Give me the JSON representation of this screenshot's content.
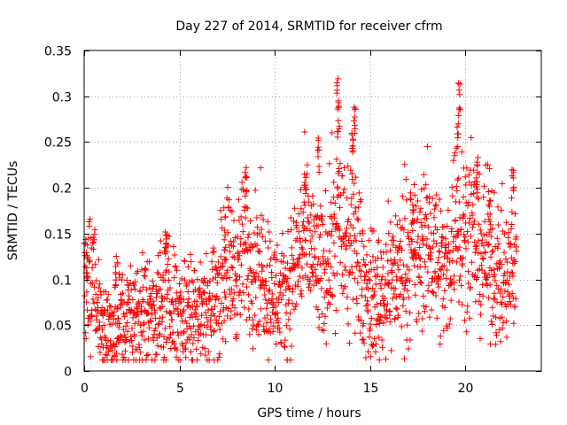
{
  "chart_data": {
    "type": "scatter",
    "title": "Day 227 of 2014, SRMTID for receiver cfrm",
    "xlabel": "GPS time / hours",
    "ylabel": "SRMTID / TECUs",
    "xlim": [
      0,
      24
    ],
    "ylim": [
      0,
      0.35
    ],
    "xticks": [
      0,
      5,
      10,
      15,
      20
    ],
    "xtick_labels": [
      "0",
      "5",
      "10",
      "15",
      "20"
    ],
    "yticks": [
      0,
      0.05,
      0.1,
      0.15,
      0.2,
      0.25,
      0.3,
      0.35
    ],
    "ytick_labels": [
      "0",
      "0.05",
      "0.1",
      "0.15",
      "0.2",
      "0.25",
      "0.3",
      "0.35"
    ],
    "grid": true,
    "marker": "+",
    "color": "#ff0000",
    "series": [
      {
        "name": "SRMTID",
        "trend": [
          [
            0.0,
            0.1
          ],
          [
            0.3,
            0.11
          ],
          [
            0.6,
            0.08
          ],
          [
            1.0,
            0.05
          ],
          [
            1.5,
            0.045
          ],
          [
            2.0,
            0.055
          ],
          [
            2.5,
            0.055
          ],
          [
            3.0,
            0.065
          ],
          [
            3.5,
            0.07
          ],
          [
            4.0,
            0.07
          ],
          [
            4.5,
            0.075
          ],
          [
            5.0,
            0.065
          ],
          [
            5.5,
            0.07
          ],
          [
            6.0,
            0.075
          ],
          [
            6.5,
            0.07
          ],
          [
            7.0,
            0.08
          ],
          [
            7.5,
            0.12
          ],
          [
            8.0,
            0.11
          ],
          [
            8.5,
            0.13
          ],
          [
            9.0,
            0.12
          ],
          [
            9.5,
            0.11
          ],
          [
            10.0,
            0.08
          ],
          [
            10.5,
            0.075
          ],
          [
            11.0,
            0.11
          ],
          [
            11.5,
            0.14
          ],
          [
            12.0,
            0.13
          ],
          [
            12.5,
            0.1
          ],
          [
            13.0,
            0.14
          ],
          [
            13.4,
            0.17
          ],
          [
            13.8,
            0.12
          ],
          [
            14.2,
            0.15
          ],
          [
            14.6,
            0.1
          ],
          [
            15.0,
            0.08
          ],
          [
            15.5,
            0.08
          ],
          [
            16.0,
            0.1
          ],
          [
            16.5,
            0.11
          ],
          [
            17.0,
            0.12
          ],
          [
            17.5,
            0.12
          ],
          [
            18.0,
            0.14
          ],
          [
            18.5,
            0.13
          ],
          [
            19.0,
            0.1
          ],
          [
            19.5,
            0.17
          ],
          [
            20.0,
            0.16
          ],
          [
            20.5,
            0.14
          ],
          [
            21.0,
            0.13
          ],
          [
            21.5,
            0.12
          ],
          [
            22.0,
            0.09
          ],
          [
            22.5,
            0.11
          ]
        ],
        "peaks": [
          [
            0.15,
            0.135
          ],
          [
            1.7,
            0.13
          ],
          [
            4.3,
            0.162
          ],
          [
            7.4,
            0.17
          ],
          [
            8.5,
            0.23
          ],
          [
            11.6,
            0.22
          ],
          [
            12.3,
            0.255
          ],
          [
            13.3,
            0.32
          ],
          [
            13.35,
            0.29
          ],
          [
            14.2,
            0.29
          ],
          [
            14.1,
            0.26
          ],
          [
            17.3,
            0.2
          ],
          [
            19.7,
            0.315
          ],
          [
            19.6,
            0.28
          ],
          [
            20.6,
            0.23
          ],
          [
            21.3,
            0.19
          ],
          [
            22.5,
            0.22
          ]
        ]
      }
    ]
  }
}
